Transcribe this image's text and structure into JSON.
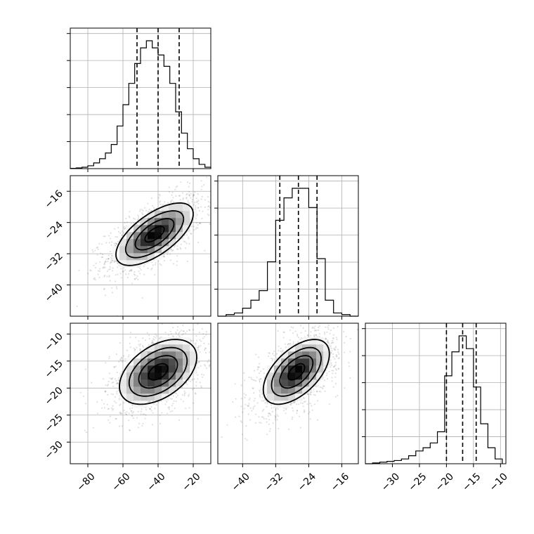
{
  "chart_data": [
    {
      "id": "hist-p1",
      "type": "bar",
      "subtype": "step-histogram",
      "xlim": [
        -90,
        -10
      ],
      "x_ticks": [
        -80,
        -60,
        -40,
        -20
      ],
      "bins": [
        -90,
        -86.67,
        -83.33,
        -80,
        -76.67,
        -73.33,
        -70,
        -66.67,
        -63.33,
        -60,
        -56.67,
        -53.33,
        -50,
        -46.67,
        -43.33,
        -40,
        -36.67,
        -33.33,
        -30,
        -26.67,
        -23.33,
        -20,
        -16.67,
        -13.33,
        -10
      ],
      "counts": [
        0.2,
        0.5,
        1,
        2,
        4,
        7,
        11,
        17,
        30,
        45,
        60,
        74,
        85,
        90,
        85,
        80,
        72,
        60,
        40,
        25,
        14,
        7,
        3,
        1
      ],
      "quantiles": [
        -52,
        -40,
        -28
      ],
      "grid": true
    },
    {
      "id": "scatter-p1-p2",
      "type": "heatmap",
      "subtype": "2d-histogram-contour",
      "x_var": "p1",
      "y_var": "p2",
      "xlim": [
        -90,
        -10
      ],
      "ylim": [
        -48,
        -12
      ],
      "x_ticks": [
        -80,
        -60,
        -40,
        -20
      ],
      "y_ticks": [
        -16,
        -24,
        -32,
        -40
      ],
      "y_tick_labels": [
        "−16",
        "−24",
        "−32",
        "−40"
      ],
      "mean": [
        -42,
        -27
      ],
      "std": [
        11,
        4
      ],
      "correlation": 0.65,
      "grid": true
    },
    {
      "id": "hist-p2",
      "type": "bar",
      "subtype": "step-histogram",
      "xlim": [
        -46,
        -12
      ],
      "x_ticks": [
        -40,
        -32,
        -24,
        -16
      ],
      "bins": [
        -46,
        -44,
        -42,
        -40,
        -38,
        -36,
        -34,
        -32,
        -30,
        -28,
        -26,
        -24,
        -22,
        -20,
        -18,
        -16,
        -14,
        -12
      ],
      "counts": [
        0,
        0.5,
        1,
        2.5,
        5,
        8,
        17,
        30,
        37,
        40,
        40,
        34,
        18,
        5,
        1,
        0.5,
        0
      ],
      "quantiles": [
        -31,
        -26.5,
        -22
      ],
      "grid": true
    },
    {
      "id": "scatter-p1-p3",
      "type": "heatmap",
      "subtype": "2d-histogram-contour",
      "x_var": "p1",
      "y_var": "p3",
      "xlim": [
        -90,
        -10
      ],
      "ylim": [
        -34,
        -8
      ],
      "x_ticks": [
        -80,
        -60,
        -40,
        -20
      ],
      "x_tick_labels": [
        "−80",
        "−60",
        "−40",
        "−20"
      ],
      "y_ticks": [
        -10,
        -15,
        -20,
        -25,
        -30
      ],
      "y_tick_labels": [
        "−10",
        "−15",
        "−20",
        "−25",
        "−30"
      ],
      "mean": [
        -40,
        -17
      ],
      "std": [
        11,
        3
      ],
      "correlation": 0.45,
      "grid": true
    },
    {
      "id": "scatter-p2-p3",
      "type": "heatmap",
      "subtype": "2d-histogram-contour",
      "x_var": "p2",
      "y_var": "p3",
      "xlim": [
        -46,
        -12
      ],
      "ylim": [
        -34,
        -8
      ],
      "x_ticks": [
        -40,
        -32,
        -24,
        -16
      ],
      "x_tick_labels": [
        "−40",
        "−32",
        "−24",
        "−16"
      ],
      "mean": [
        -27,
        -17
      ],
      "std": [
        4,
        3
      ],
      "correlation": 0.55,
      "grid": true
    },
    {
      "id": "hist-p3",
      "type": "bar",
      "subtype": "step-histogram",
      "xlim": [
        -35,
        -9
      ],
      "x_ticks": [
        -30,
        -25,
        -20,
        -15,
        -10
      ],
      "x_tick_labels": [
        "−30",
        "−25",
        "−20",
        "−15",
        "−10"
      ],
      "bins": [
        -35,
        -33.67,
        -32.33,
        -31,
        -29.67,
        -28.33,
        -27,
        -25.67,
        -24.33,
        -23,
        -21.67,
        -20.33,
        -19,
        -17.67,
        -16.33,
        -15,
        -13.67,
        -12.33,
        -11,
        -9.67
      ],
      "counts": [
        0,
        0.5,
        1,
        1.5,
        2,
        3,
        5,
        8,
        10,
        13,
        20,
        55,
        70,
        80,
        72,
        48,
        25,
        10,
        3
      ],
      "quantiles": [
        -20,
        -17,
        -14.5
      ],
      "grid": true
    }
  ]
}
